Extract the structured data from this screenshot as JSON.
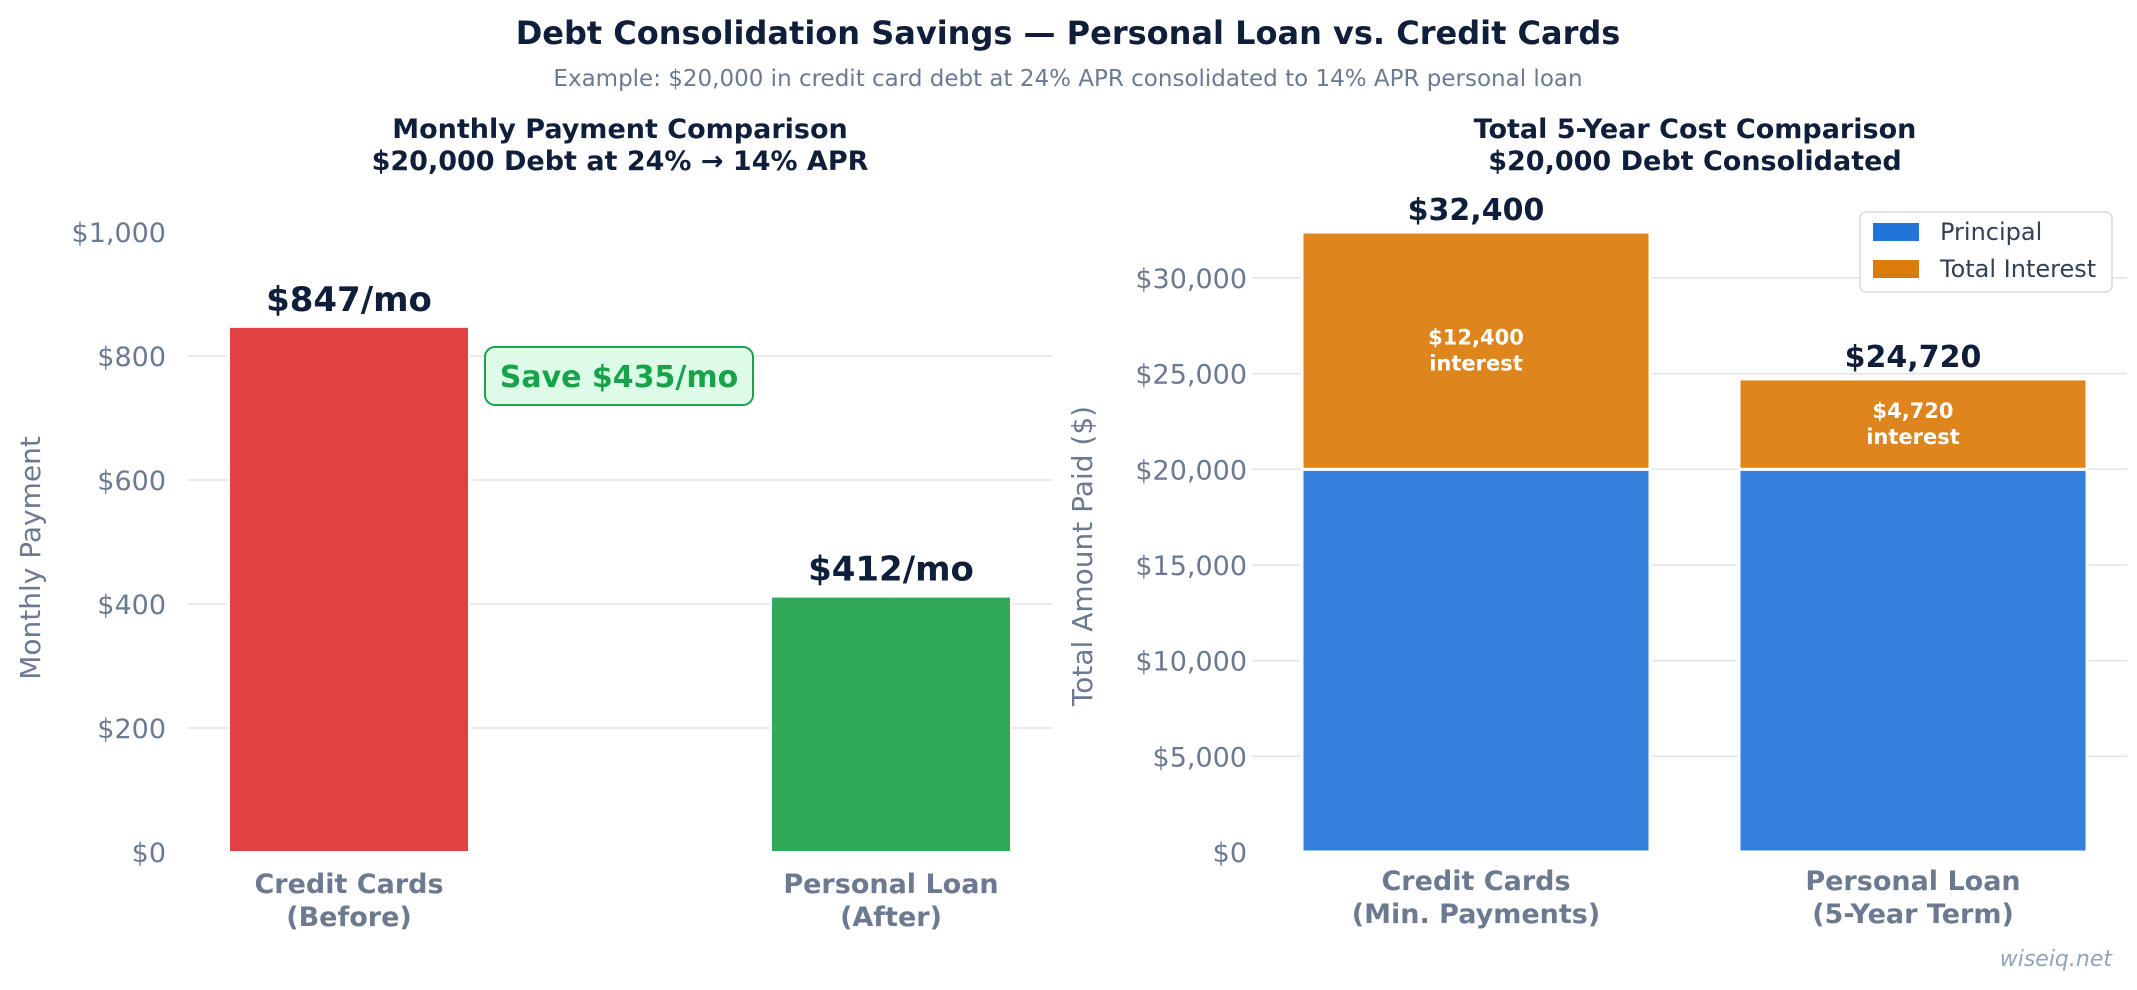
{
  "header": {
    "title": "Debt Consolidation Savings — Personal Loan vs. Credit Cards",
    "subtitle": "Example: $20,000 in credit card debt at 24% APR consolidated to 14% APR personal loan"
  },
  "watermark": "wiseiq.net",
  "chart_data": [
    {
      "type": "bar",
      "title_lines": [
        "Monthly Payment Comparison",
        "$20,000 Debt at 24% → 14% APR"
      ],
      "ylabel": "Monthly Payment",
      "ylim": [
        0,
        1000
      ],
      "yticks": [
        0,
        200,
        400,
        600,
        800,
        1000
      ],
      "ytick_labels": [
        "$0",
        "$200",
        "$400",
        "$600",
        "$800",
        "$1,000"
      ],
      "grid": true,
      "categories": [
        {
          "lines": [
            "Credit Cards",
            "(Before)"
          ]
        },
        {
          "lines": [
            "Personal Loan",
            "(After)"
          ]
        }
      ],
      "values": [
        847,
        412
      ],
      "data_labels": [
        "$847/mo",
        "$412/mo"
      ],
      "colors": [
        "#e03131",
        "#1fa34a"
      ],
      "annotation": {
        "text": "Save $435/mo",
        "color": "#16a34a",
        "fill": "#dcfce7"
      }
    },
    {
      "type": "stacked-bar",
      "title_lines": [
        "Total 5-Year Cost Comparison",
        "$20,000 Debt Consolidated"
      ],
      "ylabel": "Total Amount Paid ($)",
      "ylim": [
        0,
        32400
      ],
      "yticks": [
        0,
        5000,
        10000,
        15000,
        20000,
        25000,
        30000
      ],
      "ytick_labels": [
        "$0",
        "$5,000",
        "$10,000",
        "$15,000",
        "$20,000",
        "$25,000",
        "$30,000"
      ],
      "grid": true,
      "legend_position": "top-right",
      "categories": [
        {
          "lines": [
            "Credit Cards",
            "(Min. Payments)"
          ]
        },
        {
          "lines": [
            "Personal Loan",
            "(5-Year Term)"
          ]
        }
      ],
      "series": [
        {
          "name": "Principal",
          "values": [
            20000,
            20000
          ],
          "color": "#2274d8"
        },
        {
          "name": "Total Interest",
          "values": [
            12400,
            4720
          ],
          "color": "#db7b0b"
        }
      ],
      "segment_labels": [
        {
          "lines": [
            "$12,400",
            "interest"
          ]
        },
        {
          "lines": [
            "$4,720",
            "interest"
          ]
        }
      ],
      "total_labels": [
        "$32,400",
        "$24,720"
      ]
    }
  ]
}
